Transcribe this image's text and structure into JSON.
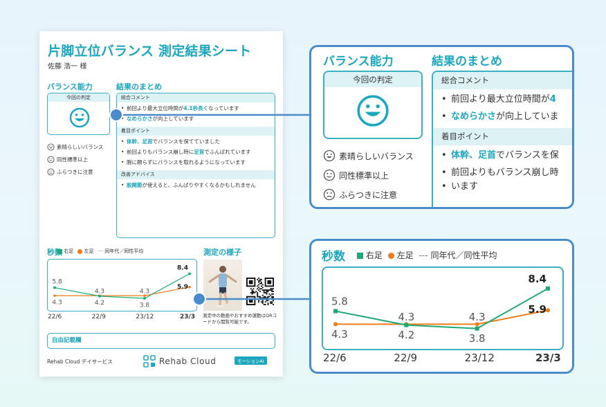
{
  "sheet": {
    "title": "片脚立位バランス 測定結果シート",
    "patient": "佐藤 浩一 様",
    "balance_heading": "バランス能力",
    "summary_heading": "結果のまとめ",
    "judgement_label": "今回の判定",
    "legend": [
      {
        "icon": "smile-face-icon",
        "label": "素晴らしいバランス"
      },
      {
        "icon": "neutral-face-icon",
        "label": "同性標準以上"
      },
      {
        "icon": "frown-face-icon",
        "label": "ふらつきに注意"
      }
    ],
    "overall_comment_label": "総合コメント",
    "overall_comments": [
      {
        "pre": "前回より最大立位時間が",
        "hl": "4.1秒長く",
        "post": "なっています"
      },
      {
        "pre": "",
        "hl": "なめらかさ",
        "post": "が向上しています"
      }
    ],
    "focus_label": "着目ポイント",
    "focus_points": [
      {
        "pre": "",
        "hl": "体幹、足首",
        "post": "でバランスを保てていました"
      },
      {
        "pre": "前回よりもバランス崩し時に",
        "hl": "足首",
        "post": "でふんばれています"
      },
      {
        "pre": "腕に頼らずにバランスを取れるようになっています",
        "hl": "",
        "post": ""
      }
    ],
    "advice_label": "改善アドバイス",
    "advice": [
      {
        "pre": "",
        "hl": "股関節",
        "post": "が使えると、ふんばりやすくなるかもしれません"
      }
    ],
    "seconds_heading": "秒数",
    "measure_heading": "測定の様子",
    "photo_caption": "測定中の動画やおすすめ運動はQRコードから閲覧可能です。",
    "free_notes_label": "自由記載欄",
    "footer_left": "Rehab Cloud デイサービス",
    "logo_text": "Rehab Cloud",
    "ai_badge": "モーションAI"
  },
  "callout_balance": {
    "balance_heading": "バランス能力",
    "summary_heading": "結果のまとめ",
    "judgement_label": "今回の判定",
    "legend": [
      "素晴らしいバランス",
      "同性標準以上",
      "ふらつきに注意"
    ],
    "overall_comment_label": "総合コメント",
    "line1_pre": "前回より最大立位時間が",
    "line1_hl": "4",
    "line2_hl": "なめらかさ",
    "line2_post": "が向上していま",
    "focus_label": "着目ポイント",
    "focus1_hl": "体幹、足首",
    "focus1_post": "でバランスを保",
    "focus2_pre": "前回よりもバランス崩し時",
    "focus2_cont": "います"
  },
  "callout_seconds": {
    "heading": "秒数"
  },
  "chart_data": {
    "type": "line",
    "categories": [
      "22/6",
      "22/9",
      "23/12",
      "23/3"
    ],
    "legend": [
      "右足",
      "左足",
      "同年代／同性平均"
    ],
    "series": [
      {
        "name": "右足",
        "values": [
          5.8,
          4.2,
          3.8,
          8.4
        ],
        "color": "#20a774",
        "labels": [
          "5.8",
          "4.2",
          "3.8",
          "8.4"
        ]
      },
      {
        "name": "左足",
        "values": [
          4.3,
          4.3,
          4.3,
          5.9
        ],
        "color": "#ef7d1c",
        "labels": [
          "4.3",
          "",
          "",
          "5.9"
        ]
      },
      {
        "name": "同年代／同性平均",
        "values": [
          4.3,
          4.3,
          4.3,
          5.9
        ],
        "color": "#999999",
        "dashed": true,
        "labels": [
          "",
          "4.3",
          "4.3",
          ""
        ]
      }
    ],
    "ylim": [
      2.5,
      9.5
    ],
    "grid": false,
    "bold_last_category": true
  },
  "colors": {
    "accent": "#1ba7bd",
    "callout_border": "#4a8ccb",
    "right_foot": "#20a774",
    "left_foot": "#ef7d1c"
  }
}
